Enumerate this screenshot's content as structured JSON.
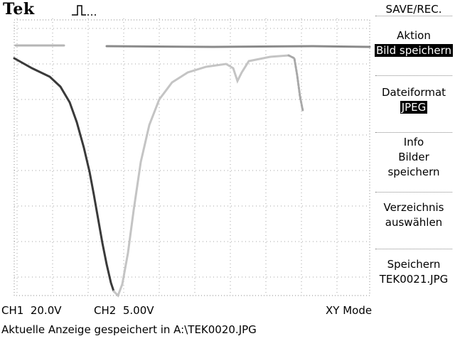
{
  "header": {
    "brand": "Tek",
    "trigger_icon": "pulse-trigger-icon"
  },
  "menu": {
    "title": "SAVE/REC.",
    "items": [
      {
        "lines": [
          "Aktion"
        ],
        "selected": "Bild speichern"
      },
      {
        "lines": [
          "Dateiformat"
        ],
        "selected": "JPEG"
      },
      {
        "lines": [
          "Info",
          "Bilder",
          "speichern"
        ],
        "selected": ""
      },
      {
        "lines": [
          "Verzeichnis",
          "auswählen"
        ],
        "selected": ""
      },
      {
        "lines": [
          "Speichern",
          "TEK0021.JPG"
        ],
        "selected": ""
      }
    ]
  },
  "status_bar": {
    "ch1": "CH1  20.0V",
    "ch2": "CH2  5.00V",
    "mode": "XY Mode"
  },
  "message": "Aktuelle Anzeige gespeichert in A:\\TEK0020.JPG",
  "colors": {
    "background": "#ffffff",
    "grid": "#a0a0a0",
    "trace_dark": "#2a2a2a",
    "trace_light": "#b5b5b5"
  }
}
